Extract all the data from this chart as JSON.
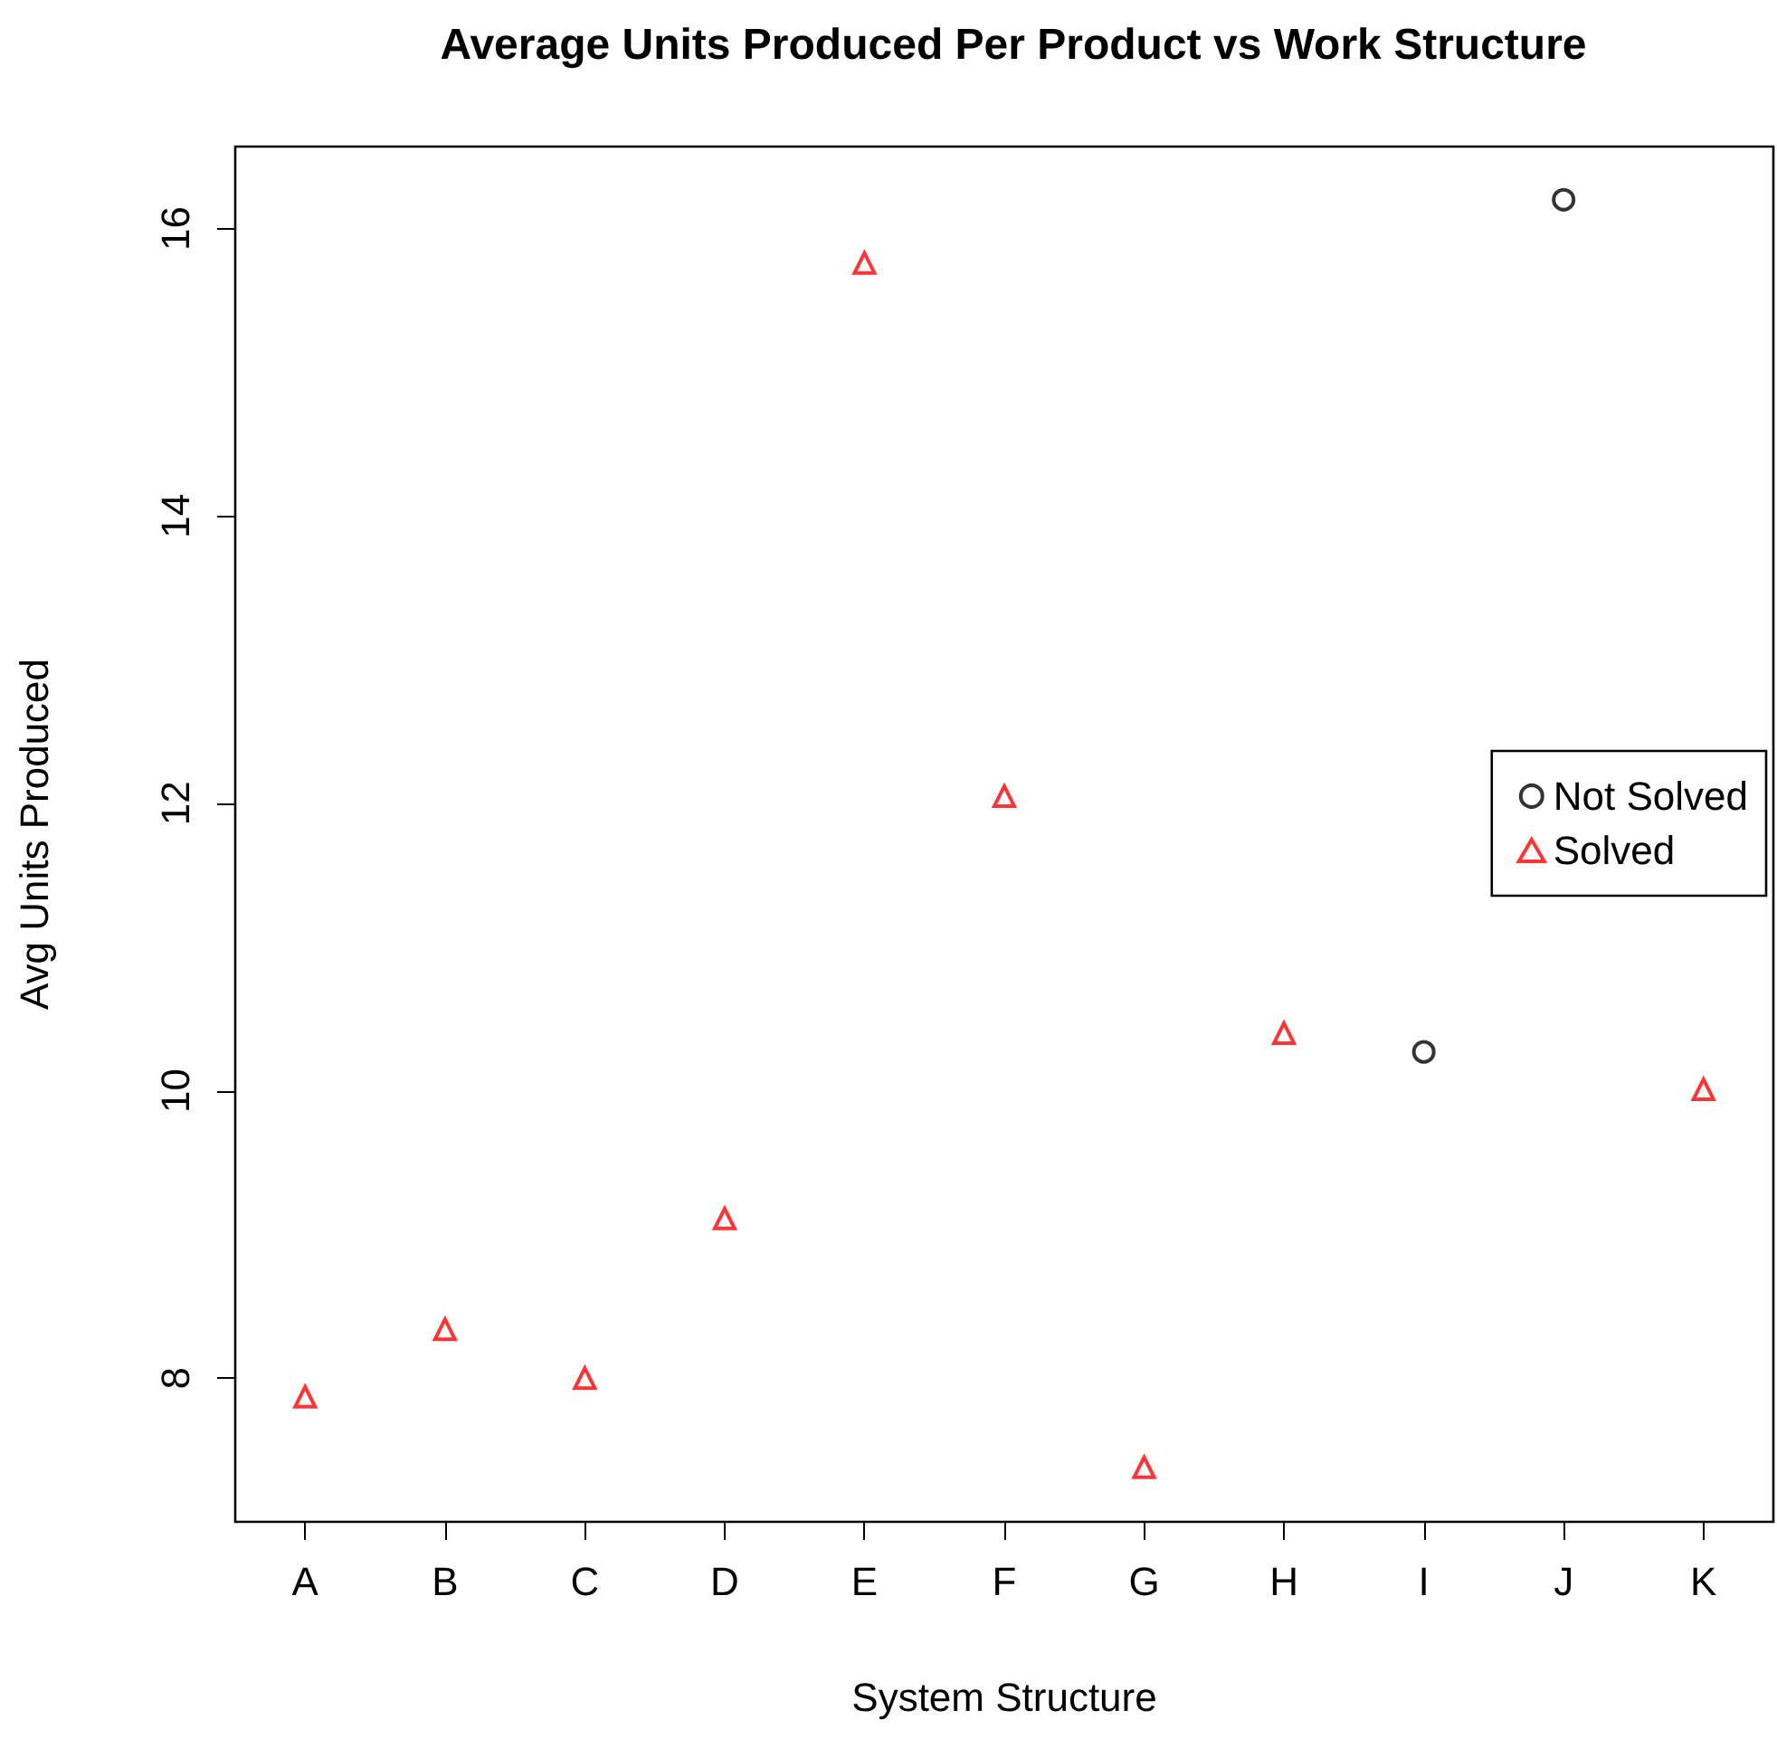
{
  "chart_data": {
    "type": "scatter",
    "title": "Average Units Produced Per Product vs Work Structure",
    "xlabel": "System Structure",
    "ylabel": "Avg Units Produced",
    "categories": [
      "A",
      "B",
      "C",
      "D",
      "E",
      "F",
      "G",
      "H",
      "I",
      "J",
      "K"
    ],
    "series": [
      {
        "name": "Not Solved",
        "color": "#000000",
        "marker": "circle",
        "values": [
          null,
          null,
          null,
          null,
          null,
          null,
          null,
          null,
          10.27,
          16.2,
          null
        ]
      },
      {
        "name": "Solved",
        "color": "#ff0000",
        "marker": "triangle",
        "values": [
          7.87,
          8.34,
          8.0,
          9.11,
          15.76,
          12.05,
          7.38,
          10.4,
          null,
          null,
          10.01
        ]
      }
    ],
    "ylim": [
      7.0,
      16.57
    ],
    "yticks": [
      8,
      10,
      12,
      14,
      16
    ],
    "grid": false,
    "legend": "right"
  }
}
